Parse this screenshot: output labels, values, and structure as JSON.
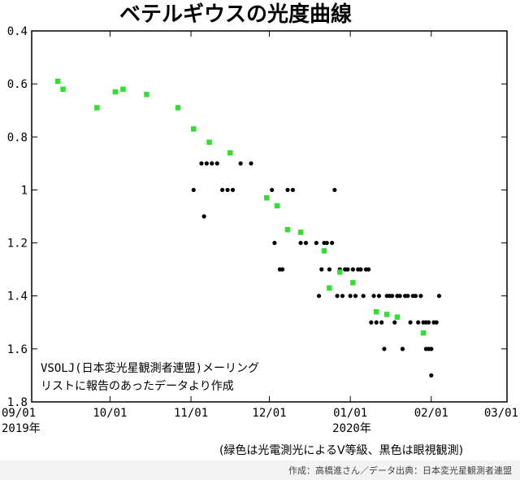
{
  "chart_data": {
    "type": "scatter",
    "title": "ベテルギウスの光度曲線",
    "ylim": [
      0.4,
      1.8
    ],
    "y_inverted": true,
    "grid": false,
    "y_ticks": [
      "0.4",
      "0.6",
      "0.8",
      "1",
      "1.2",
      "1.4",
      "1.6",
      "1.8"
    ],
    "x_ticks": [
      "09/01",
      "10/01",
      "11/01",
      "12/01",
      "01/01",
      "02/01",
      "03/01"
    ],
    "x_tick_days": [
      0,
      30,
      61,
      91,
      122,
      153,
      182
    ],
    "year_labels": [
      {
        "text": "2019年",
        "tick": "09/01"
      },
      {
        "text": "2020年",
        "tick": "01/01"
      }
    ],
    "annotation": [
      "VSOLJ(日本変光星観測者連盟)メーリング",
      "リストに報告のあったデータより作成"
    ],
    "legend_note": "(緑色は光電測光によるV等級、黒色は眼視観測)",
    "credit": "作成：高橋進さん／データ出典：日本変光星観測者連盟",
    "colors": {
      "photometric": "#33dd33",
      "visual": "#000000"
    },
    "series": [
      {
        "points": [
          [
            10,
            0.59
          ],
          [
            12,
            0.62
          ],
          [
            25,
            0.69
          ],
          [
            32,
            0.63
          ],
          [
            35,
            0.62
          ],
          [
            44,
            0.64
          ],
          [
            56,
            0.69
          ],
          [
            62,
            0.77
          ],
          [
            68,
            0.82
          ],
          [
            76,
            0.86
          ],
          [
            90,
            1.03
          ],
          [
            94,
            1.06
          ],
          [
            98,
            1.15
          ],
          [
            103,
            1.16
          ],
          [
            112,
            1.23
          ],
          [
            114,
            1.37
          ],
          [
            118,
            1.31
          ],
          [
            123,
            1.35
          ],
          [
            132,
            1.46
          ],
          [
            136,
            1.47
          ],
          [
            140,
            1.48
          ],
          [
            150,
            1.54
          ]
        ]
      },
      {
        "points": [
          [
            62,
            1.0
          ],
          [
            66,
            1.1
          ],
          [
            65,
            0.9
          ],
          [
            67,
            0.9
          ],
          [
            69,
            0.9
          ],
          [
            71,
            0.9
          ],
          [
            73,
            1.0
          ],
          [
            75,
            1.0
          ],
          [
            77,
            1.0
          ],
          [
            80,
            0.9
          ],
          [
            84,
            0.9
          ],
          [
            92,
            1.0
          ],
          [
            93,
            1.2
          ],
          [
            95,
            1.3
          ],
          [
            96,
            1.3
          ],
          [
            98,
            1.0
          ],
          [
            100,
            1.0
          ],
          [
            103,
            1.2
          ],
          [
            105,
            1.2
          ],
          [
            109,
            1.2
          ],
          [
            110,
            1.4
          ],
          [
            111,
            1.3
          ],
          [
            112,
            1.2
          ],
          [
            113,
            1.2
          ],
          [
            114,
            1.3
          ],
          [
            115,
            1.2
          ],
          [
            116,
            1.0
          ],
          [
            117,
            1.4
          ],
          [
            118,
            1.3
          ],
          [
            119,
            1.4
          ],
          [
            120,
            1.3
          ],
          [
            121,
            1.3
          ],
          [
            122,
            1.4
          ],
          [
            123,
            1.3
          ],
          [
            124,
            1.4
          ],
          [
            125,
            1.3
          ],
          [
            126,
            1.3
          ],
          [
            127,
            1.4
          ],
          [
            128,
            1.3
          ],
          [
            129,
            1.3
          ],
          [
            130,
            1.5
          ],
          [
            131,
            1.4
          ],
          [
            132,
            1.5
          ],
          [
            133,
            1.4
          ],
          [
            134,
            1.5
          ],
          [
            135,
            1.6
          ],
          [
            136,
            1.4
          ],
          [
            137,
            1.4
          ],
          [
            138,
            1.4
          ],
          [
            139,
            1.5
          ],
          [
            140,
            1.4
          ],
          [
            141,
            1.4
          ],
          [
            142,
            1.6
          ],
          [
            143,
            1.4
          ],
          [
            144,
            1.4
          ],
          [
            145,
            1.5
          ],
          [
            146,
            1.4
          ],
          [
            147,
            1.4
          ],
          [
            148,
            1.5
          ],
          [
            149,
            1.4
          ],
          [
            150,
            1.5
          ],
          [
            151,
            1.6
          ],
          [
            152,
            1.5
          ],
          [
            153,
            1.6
          ],
          [
            154,
            1.5
          ],
          [
            155,
            1.5
          ],
          [
            156,
            1.4
          ],
          [
            151,
            1.5
          ],
          [
            153,
            1.7
          ],
          [
            152,
            1.6
          ]
        ]
      }
    ]
  }
}
